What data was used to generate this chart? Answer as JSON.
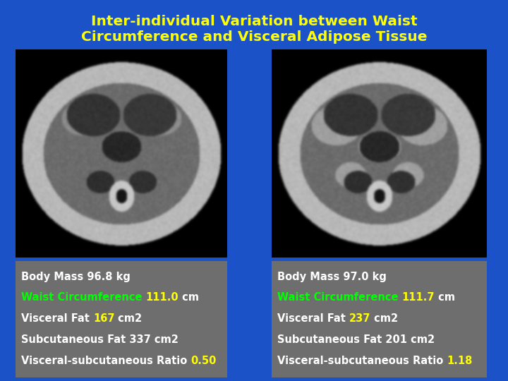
{
  "title_line1": "Inter-individual Variation between Waist",
  "title_line2": "Circumference and Visceral Adipose Tissue",
  "title_color": "#FFFF00",
  "background_color": "#1C52C8",
  "panel_bg_color": "#6E6E6E",
  "title_fontsize": 14.5,
  "left_panel": {
    "body_mass": "Body Mass 96.8 kg",
    "waist_label": "Waist Circumference ",
    "waist_value": "111.0",
    "waist_unit": " cm",
    "visceral_label": "Visceral Fat ",
    "visceral_value": "167",
    "visceral_unit": " cm2",
    "subcut_label": "Subcutaneous Fat 337 cm2",
    "ratio_label": "Visceral-subcutaneous Ratio ",
    "ratio_value": "0.50"
  },
  "right_panel": {
    "body_mass": "Body Mass 97.0 kg",
    "waist_label": "Waist Circumference ",
    "waist_value": "111.7",
    "waist_unit": " cm",
    "visceral_label": "Visceral Fat ",
    "visceral_value": "237",
    "visceral_unit": " cm2",
    "subcut_label": "Subcutaneous Fat 201 cm2",
    "ratio_label": "Visceral-subcutaneous Ratio ",
    "ratio_value": "1.18"
  },
  "white_text": "#FFFFFF",
  "green_text": "#00FF00",
  "yellow_text": "#FFFF00",
  "label_fontsize": 10.5
}
